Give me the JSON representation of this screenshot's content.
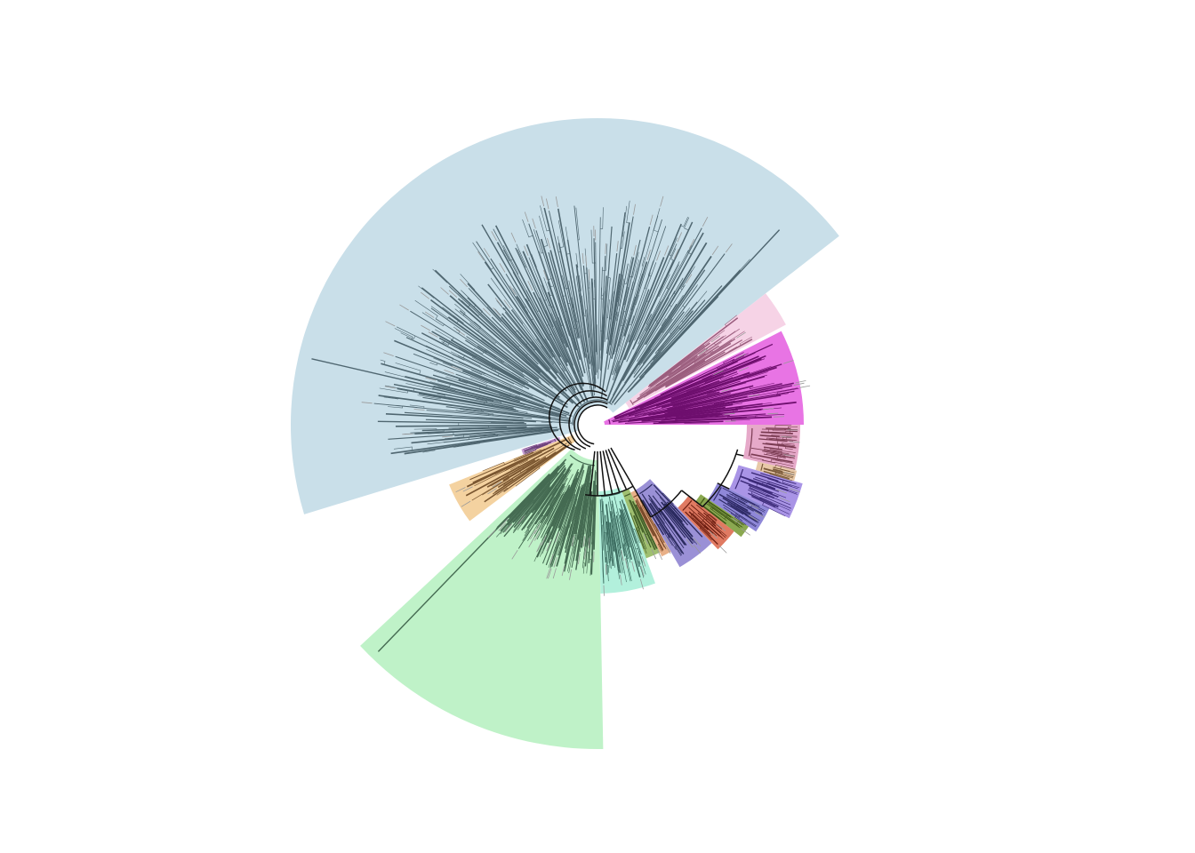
{
  "figure": {
    "kind": "circular phylogenetic tree",
    "background": "#ffffff",
    "trunk_color": "#111111",
    "tip_label_color": "#9a9a9a"
  },
  "clades": [
    {
      "id": "clade-lightblue",
      "fill": "#c9dfe9",
      "branch": "#4f6670"
    },
    {
      "id": "clade-pink",
      "fill": "#f6d3e6",
      "branch": "#9b5e7e"
    },
    {
      "id": "clade-magenta",
      "fill": "#e874e4",
      "branch": "#6e0f6e"
    },
    {
      "id": "clade-rose",
      "fill": "#e6a9c9",
      "branch": "#7a3b52"
    },
    {
      "id": "clade-tan",
      "fill": "#e8c9a8",
      "branch": "#7a5a3a"
    },
    {
      "id": "clade-purple-1",
      "fill": "#a994e6",
      "branch": "#3c2a78"
    },
    {
      "id": "clade-blue-violet",
      "fill": "#8f88d8",
      "branch": "#2e2a66"
    },
    {
      "id": "clade-olive",
      "fill": "#8aa850",
      "branch": "#3e5516"
    },
    {
      "id": "clade-red",
      "fill": "#e07a62",
      "branch": "#6b1d10"
    },
    {
      "id": "clade-purple-2",
      "fill": "#9a90d6",
      "branch": "#2a2a5e"
    },
    {
      "id": "clade-peach",
      "fill": "#e8b088",
      "branch": "#7a4a2a"
    },
    {
      "id": "clade-green-small",
      "fill": "#9fbf70",
      "branch": "#44602a"
    },
    {
      "id": "clade-aqua",
      "fill": "#b2f0dc",
      "branch": "#3e6e62"
    },
    {
      "id": "clade-mint",
      "fill": "#bff2c8",
      "branch": "#456b52"
    },
    {
      "id": "clade-orange",
      "fill": "#f4d2a0",
      "branch": "#7a5630"
    },
    {
      "id": "clade-violet-small",
      "fill": "#c9a0d8",
      "branch": "#6a3f78"
    }
  ]
}
